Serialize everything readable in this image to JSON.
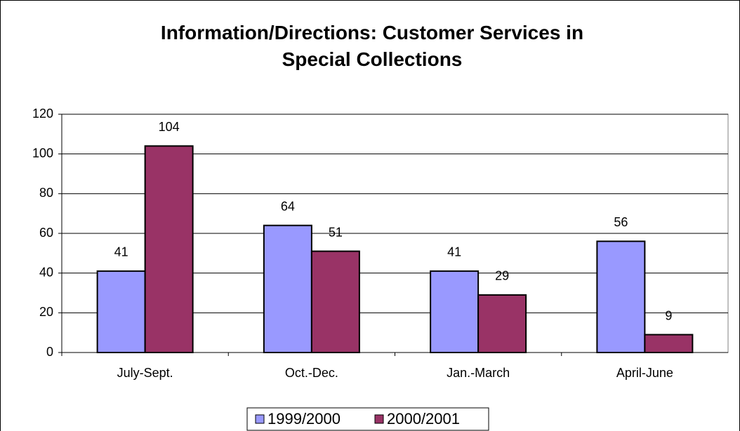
{
  "chart_data": {
    "type": "bar",
    "title": "Information/Directions: Customer Services in Special Collections",
    "categories": [
      "July-Sept.",
      "Oct.-Dec.",
      "Jan.-March",
      "April-June"
    ],
    "series": [
      {
        "name": "1999/2000",
        "color": "#9999ff",
        "values": [
          41,
          64,
          41,
          56
        ]
      },
      {
        "name": "2000/2001",
        "color": "#993366",
        "values": [
          104,
          51,
          29,
          9
        ]
      }
    ],
    "ylim": [
      0,
      120
    ],
    "yticks": [
      0,
      20,
      40,
      60,
      80,
      100,
      120
    ],
    "grid": true,
    "legend": "bottom"
  }
}
